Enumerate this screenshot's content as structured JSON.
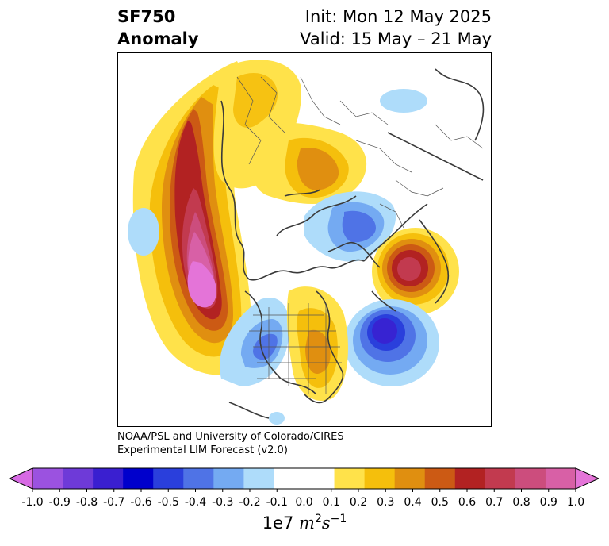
{
  "header": {
    "variable": "SF750",
    "field_type": "Anomaly",
    "init": "Init: Mon 12 May 2025",
    "valid": "Valid: 15 May – 21 May"
  },
  "map": {
    "projection": "north-polar-stereographic",
    "features": [
      "coastlines",
      "country-borders",
      "us-state-borders"
    ],
    "anomaly_centers": [
      {
        "region": "North Pacific / west of North America",
        "sign": "positive",
        "peak": 1.0
      },
      {
        "region": "Eurasia / Scandinavia",
        "sign": "positive",
        "peak": 0.3
      },
      {
        "region": "Siberia / Arctic coast",
        "sign": "positive",
        "peak": 0.4
      },
      {
        "region": "North Atlantic / Greenland east",
        "sign": "positive",
        "peak": 0.6
      },
      {
        "region": "Eastern North America",
        "sign": "positive",
        "peak": 0.4
      },
      {
        "region": "Western United States",
        "sign": "negative",
        "peak": -0.4
      },
      {
        "region": "North Atlantic",
        "sign": "negative",
        "peak": -0.6
      },
      {
        "region": "Central Asia",
        "sign": "negative",
        "peak": -0.4
      }
    ]
  },
  "credit": {
    "line1": "NOAA/PSL and University of Colorado/CIRES",
    "line2": "Experimental LIM Forecast (v2.0)"
  },
  "colorbar": {
    "levels": [
      -1.0,
      -0.9,
      -0.8,
      -0.7,
      -0.6,
      -0.5,
      -0.4,
      -0.3,
      -0.2,
      -0.1,
      0.0,
      0.1,
      0.2,
      0.3,
      0.4,
      0.5,
      0.6,
      0.7,
      0.8,
      0.9,
      1.0
    ],
    "tick_labels": [
      "-1.0",
      "-0.9",
      "-0.8",
      "-0.7",
      "-0.6",
      "-0.5",
      "-0.4",
      "-0.3",
      "-0.2",
      "-0.1",
      "0.0",
      "0.1",
      "0.2",
      "0.3",
      "0.4",
      "0.5",
      "0.6",
      "0.7",
      "0.8",
      "0.9",
      "1.0"
    ],
    "colors": [
      "#9b52e0",
      "#6e3ad8",
      "#3a1fd0",
      "#0000cc",
      "#2a3fdc",
      "#4f73e6",
      "#74aaf2",
      "#aedcfa",
      "#ffffff",
      "#ffffff",
      "#ffe24a",
      "#f5bf0c",
      "#e08f10",
      "#cc5a14",
      "#b22222",
      "#c23a4f",
      "#cc4d7d",
      "#d860a6"
    ],
    "under_color": "#d76ae4",
    "over_color": "#e474d8",
    "extend": "both",
    "units_base": "1e7",
    "units_m": "m",
    "units_m_exp": "2",
    "units_s": "s",
    "units_s_exp": "−1"
  }
}
